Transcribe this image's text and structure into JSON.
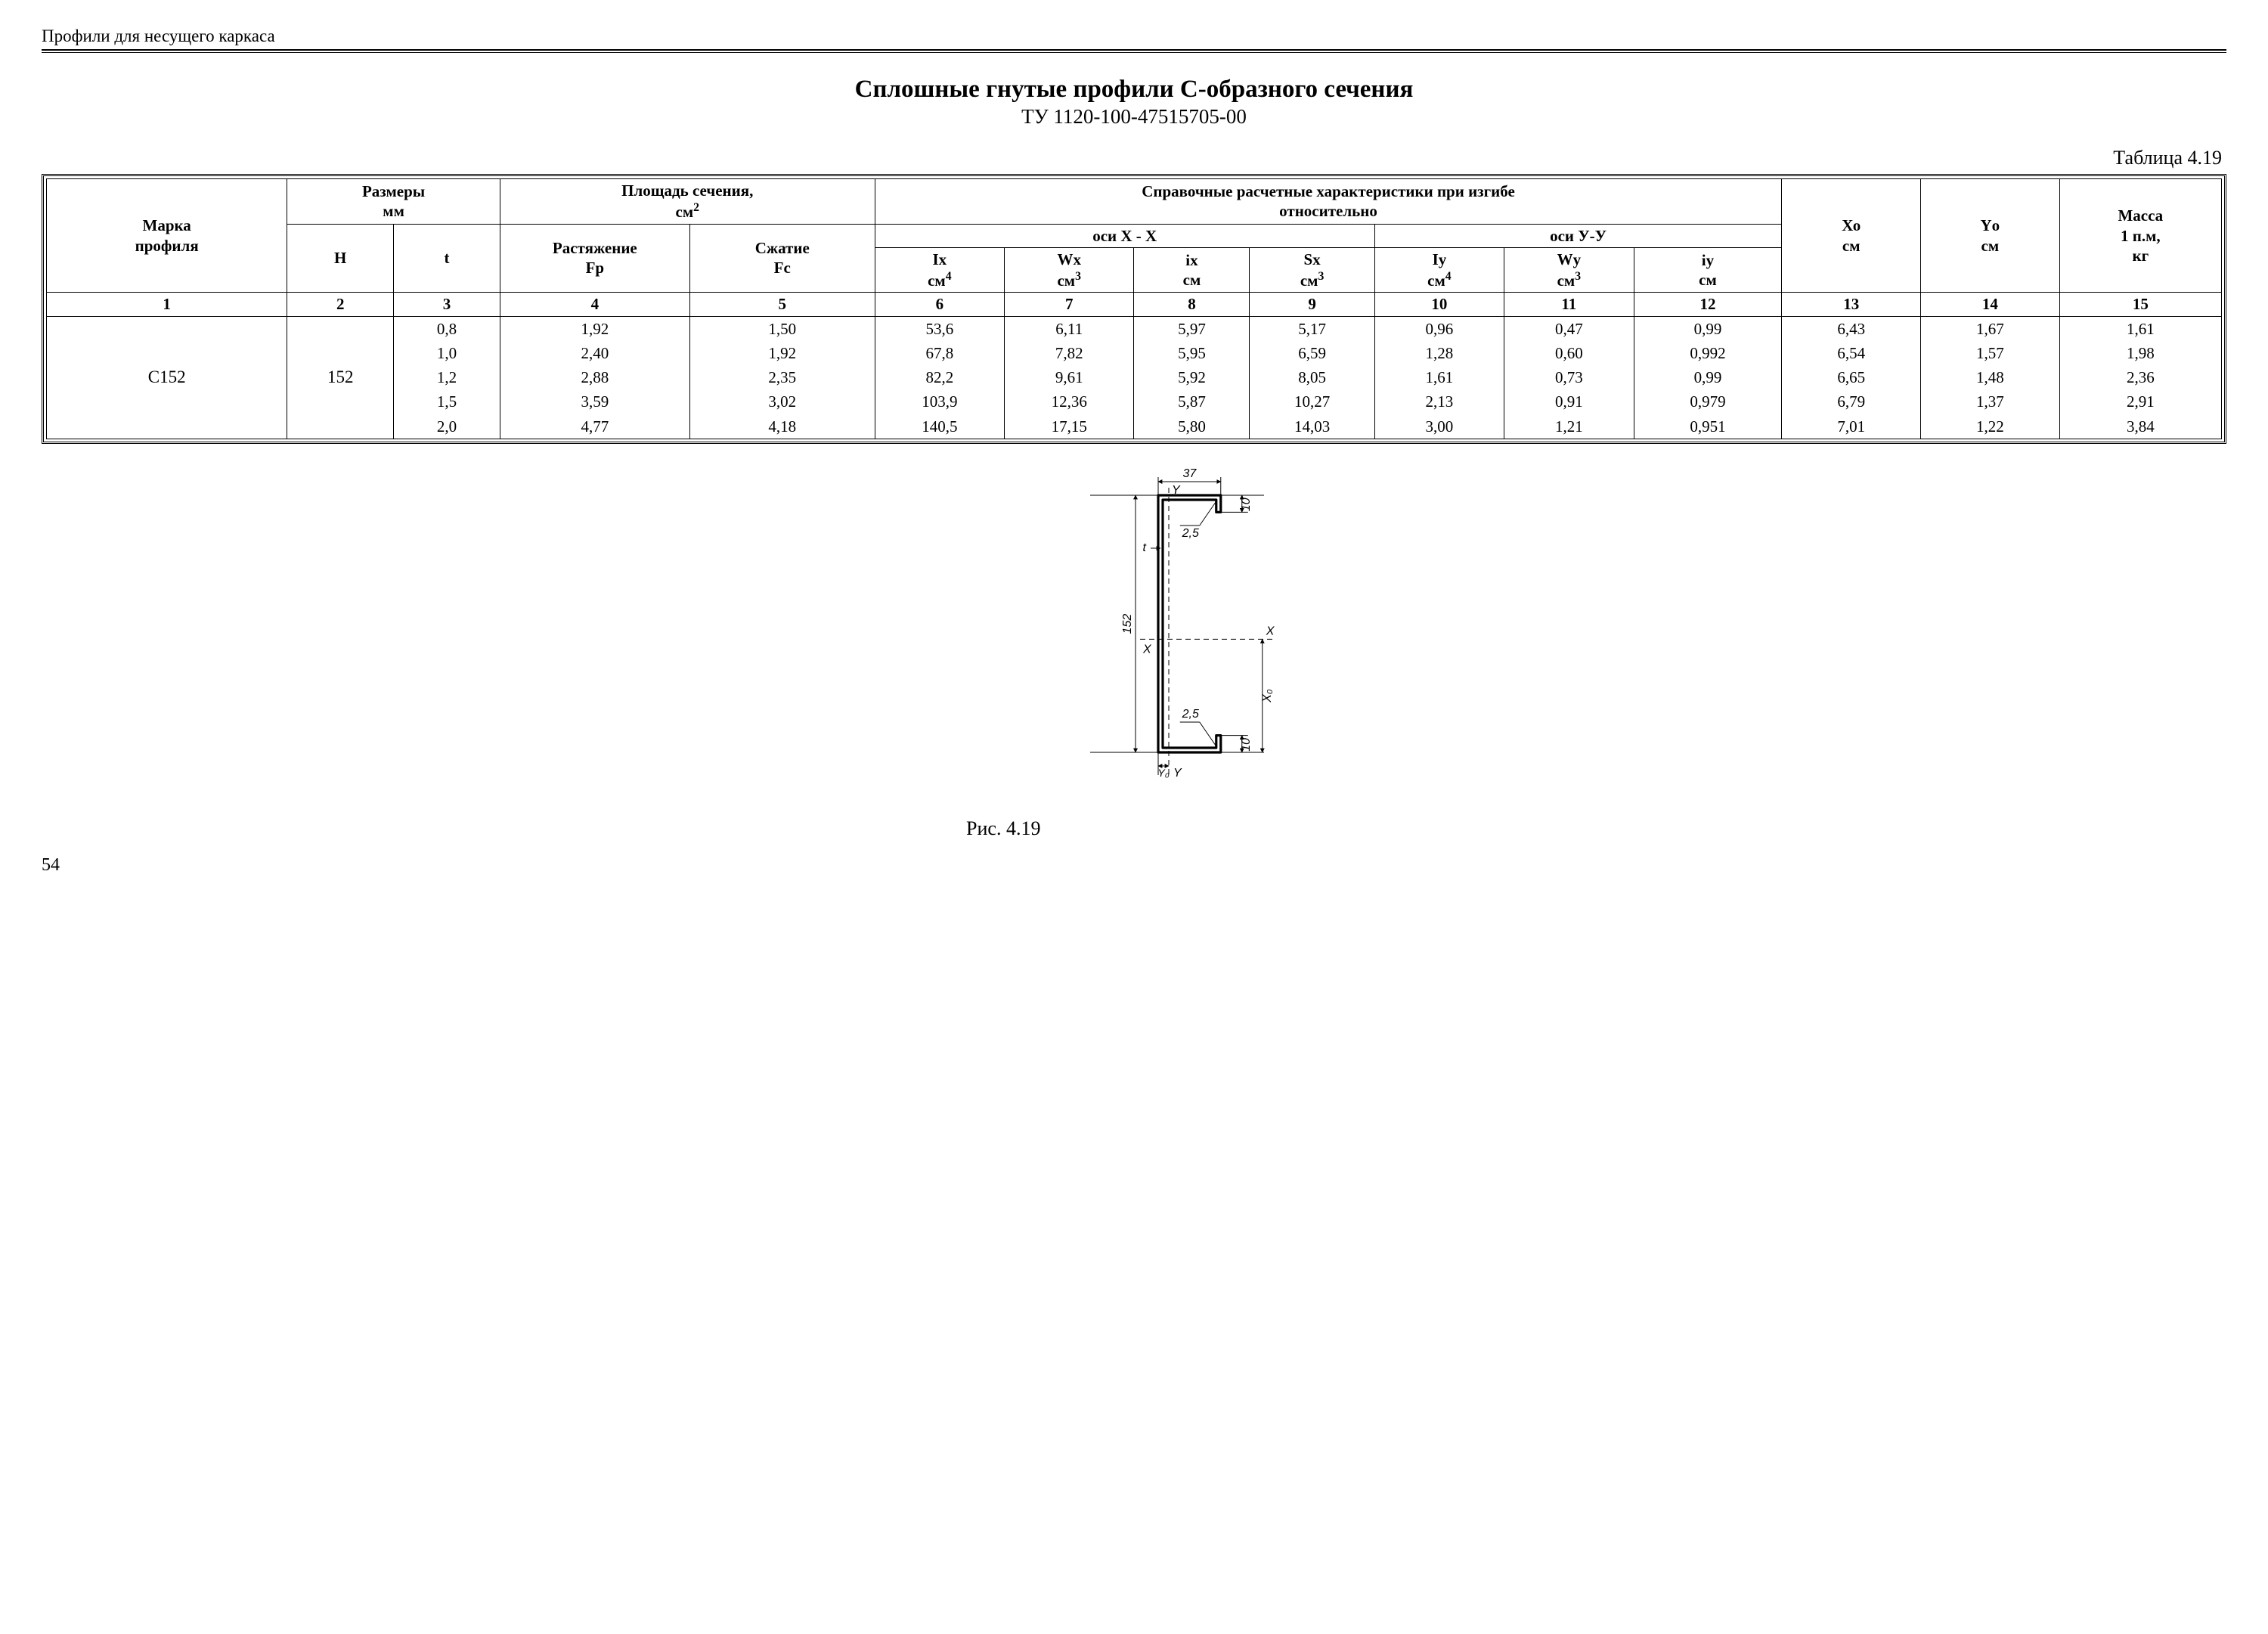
{
  "header": "Профили для несущего каркаса",
  "title": "Сплошные гнутые   профили С-образного сечения",
  "subtitle": "ТУ 1120-100-47515705-00",
  "table_label": "Таблица 4.19",
  "page_number": "54",
  "figure_caption": "Рис. 4.19",
  "colors": {
    "text": "#000000",
    "background": "#ffffff",
    "border": "#000000"
  },
  "table": {
    "head": {
      "col1": "Марка\nпрофиля",
      "sizes": "Размеры\nмм",
      "area": "Площадь  сечения,",
      "area_unit": "см",
      "ref": "Справочные расчетные характеристики при изгибе\nотносительно",
      "xo": "Хо",
      "xo_unit": "см",
      "yo": "Yо",
      "yo_unit": "см",
      "mass": "Масса\n1 п.м,\nкг",
      "axisX": "оси Х - Х",
      "axisY": "оси У-У",
      "H": "H",
      "t": "t",
      "Fp": "Растяжение\nFр",
      "Fc": "Сжатие\nFс",
      "Ix": "Iх",
      "Ix_u": "см",
      "Ix_e": "4",
      "Wx": "Wх",
      "Wx_u": "см",
      "Wx_e": "3",
      "ix": "iх",
      "ix_u": "см",
      "Sx": "Sх",
      "Sx_u": "см",
      "Sx_e": "3",
      "Iy": "Iу",
      "Iy_u": "см",
      "Iy_e": "4",
      "Wy": "Wу",
      "Wy_u": "см",
      "Wy_e": "3",
      "iy": "iу",
      "iy_u": "см"
    },
    "colnums": [
      "1",
      "2",
      "3",
      "4",
      "5",
      "6",
      "7",
      "8",
      "9",
      "10",
      "11",
      "12",
      "13",
      "14",
      "15"
    ],
    "mark": "С152",
    "H": "152",
    "rows": [
      {
        "t": "0,8",
        "Fp": "1,92",
        "Fc": "1,50",
        "Ix": "53,6",
        "Wx": "6,11",
        "ix": "5,97",
        "Sx": "5,17",
        "Iy": "0,96",
        "Wy": "0,47",
        "iy": "0,99",
        "Xo": "6,43",
        "Yo": "1,67",
        "m": "1,61"
      },
      {
        "t": "1,0",
        "Fp": "2,40",
        "Fc": "1,92",
        "Ix": "67,8",
        "Wx": "7,82",
        "ix": "5,95",
        "Sx": "6,59",
        "Iy": "1,28",
        "Wy": "0,60",
        "iy": "0,992",
        "Xo": "6,54",
        "Yo": "1,57",
        "m": "1,98"
      },
      {
        "t": "1,2",
        "Fp": "2,88",
        "Fc": "2,35",
        "Ix": "82,2",
        "Wx": "9,61",
        "ix": "5,92",
        "Sx": "8,05",
        "Iy": "1,61",
        "Wy": "0,73",
        "iy": "0,99",
        "Xo": "6,65",
        "Yo": "1,48",
        "m": "2,36"
      },
      {
        "t": "1,5",
        "Fp": "3,59",
        "Fc": "3,02",
        "Ix": "103,9",
        "Wx": "12,36",
        "ix": "5,87",
        "Sx": "10,27",
        "Iy": "2,13",
        "Wy": "0,91",
        "iy": "0,979",
        "Xo": "6,79",
        "Yo": "1,37",
        "m": "2,91"
      },
      {
        "t": "2,0",
        "Fp": "4,77",
        "Fc": "4,18",
        "Ix": "140,5",
        "Wx": "17,15",
        "ix": "5,80",
        "Sx": "14,03",
        "Iy": "3,00",
        "Wy": "1,21",
        "iy": "0,951",
        "Xo": "7,01",
        "Yo": "1,22",
        "m": "3,84"
      }
    ]
  },
  "diagram": {
    "type": "cross-section",
    "dims": {
      "width": "37",
      "height": "152",
      "lip": "10",
      "radius": "2,5"
    },
    "labels": {
      "t": "t",
      "X": "X",
      "Y": "Y",
      "Xo": "X₀",
      "Yo": "Y₀"
    },
    "style": {
      "stroke": "#000000",
      "stroke_width": 1.5,
      "stroke_width_heavy": 3.2,
      "dash": "7 5",
      "arrow_size": 6,
      "font_size": 16,
      "font_style": "italic"
    }
  }
}
